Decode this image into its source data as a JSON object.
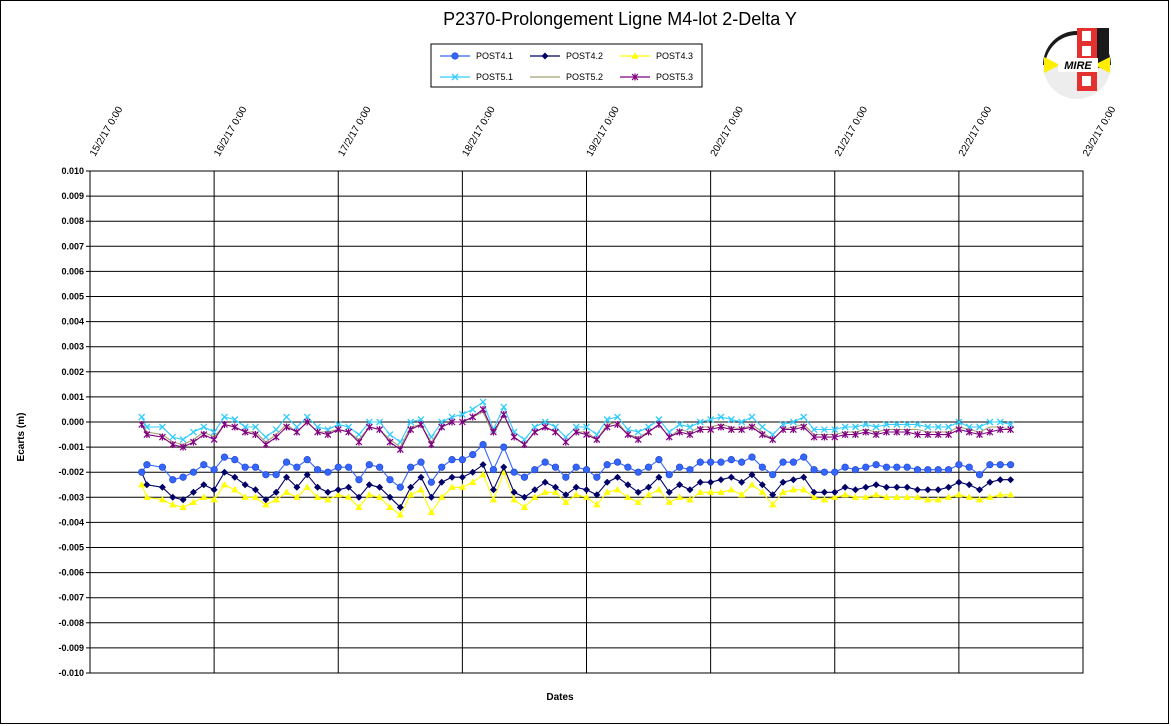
{
  "chart_data": {
    "type": "line",
    "title": "P2370-Prolongement  Ligne  M4-lot 2-Delta  Y",
    "xlabel": "Dates",
    "ylabel": "Ecarts (m)",
    "x_tick_labels": [
      "15/2/17 0:00",
      "16/2/17 0:00",
      "17/2/17 0:00",
      "18/2/17 0:00",
      "19/2/17 0:00",
      "20/2/17 0:00",
      "21/2/17 0:00",
      "22/2/17 0:00",
      "23/2/17 0:00"
    ],
    "xlim": [
      "15/2/17 0:00",
      "23/2/17 0:00"
    ],
    "ylim": [
      -0.01,
      0.01
    ],
    "y_ticks": [
      "0.010",
      "0.009",
      "0.008",
      "0.007",
      "0.006",
      "0.005",
      "0.004",
      "0.003",
      "0.002",
      "0.001",
      "0.000",
      "-0.001",
      "-0.002",
      "-0.003",
      "-0.004",
      "-0.005",
      "-0.006",
      "-0.007",
      "-0.008",
      "-0.009",
      "-0.010"
    ],
    "grid": true,
    "legend_position": "top-center",
    "x": [
      "15/2/17 10:00",
      "15/2/17 11:00",
      "15/2/17 14:00",
      "15/2/17 16:00",
      "15/2/17 18:00",
      "15/2/17 20:00",
      "15/2/17 22:00",
      "16/2/17 0:00",
      "16/2/17 2:00",
      "16/2/17 4:00",
      "16/2/17 6:00",
      "16/2/17 8:00",
      "16/2/17 10:00",
      "16/2/17 12:00",
      "16/2/17 14:00",
      "16/2/17 16:00",
      "16/2/17 18:00",
      "16/2/17 20:00",
      "16/2/17 22:00",
      "17/2/17 0:00",
      "17/2/17 2:00",
      "17/2/17 4:00",
      "17/2/17 6:00",
      "17/2/17 8:00",
      "17/2/17 10:00",
      "17/2/17 12:00",
      "17/2/17 14:00",
      "17/2/17 16:00",
      "17/2/17 18:00",
      "17/2/17 20:00",
      "17/2/17 22:00",
      "18/2/17 0:00",
      "18/2/17 2:00",
      "18/2/17 4:00",
      "18/2/17 6:00",
      "18/2/17 8:00",
      "18/2/17 10:00",
      "18/2/17 12:00",
      "18/2/17 14:00",
      "18/2/17 16:00",
      "18/2/17 18:00",
      "18/2/17 20:00",
      "18/2/17 22:00",
      "19/2/17 0:00",
      "19/2/17 2:00",
      "19/2/17 4:00",
      "19/2/17 6:00",
      "19/2/17 8:00",
      "19/2/17 10:00",
      "19/2/17 12:00",
      "19/2/17 14:00",
      "19/2/17 16:00",
      "19/2/17 18:00",
      "19/2/17 20:00",
      "19/2/17 22:00",
      "20/2/17 0:00",
      "20/2/17 2:00",
      "20/2/17 4:00",
      "20/2/17 6:00",
      "20/2/17 8:00",
      "20/2/17 10:00",
      "20/2/17 12:00",
      "20/2/17 14:00",
      "20/2/17 16:00",
      "20/2/17 18:00",
      "20/2/17 20:00",
      "20/2/17 22:00",
      "21/2/17 0:00",
      "21/2/17 2:00",
      "21/2/17 4:00",
      "21/2/17 6:00",
      "21/2/17 8:00",
      "21/2/17 10:00",
      "21/2/17 12:00",
      "21/2/17 14:00",
      "21/2/17 16:00",
      "21/2/17 18:00",
      "21/2/17 20:00",
      "21/2/17 22:00",
      "22/2/17 0:00",
      "22/2/17 2:00",
      "22/2/17 4:00",
      "22/2/17 6:00",
      "22/2/17 8:00",
      "22/2/17 10:00"
    ],
    "series": [
      {
        "name": "POST4.1",
        "color": "#3366FF",
        "marker": "circle",
        "values": [
          -0.002,
          -0.0017,
          -0.0018,
          -0.0023,
          -0.0022,
          -0.002,
          -0.0017,
          -0.0019,
          -0.0014,
          -0.0015,
          -0.0018,
          -0.0018,
          -0.0021,
          -0.0021,
          -0.0016,
          -0.0018,
          -0.0015,
          -0.0019,
          -0.002,
          -0.0018,
          -0.0018,
          -0.0023,
          -0.0017,
          -0.0018,
          -0.0023,
          -0.0026,
          -0.0018,
          -0.0016,
          -0.0024,
          -0.0018,
          -0.0015,
          -0.0015,
          -0.0013,
          -0.0009,
          -0.0019,
          -0.001,
          -0.002,
          -0.0022,
          -0.0019,
          -0.0016,
          -0.0018,
          -0.0022,
          -0.0018,
          -0.0019,
          -0.0022,
          -0.0017,
          -0.0016,
          -0.0018,
          -0.002,
          -0.0018,
          -0.0015,
          -0.0021,
          -0.0018,
          -0.0019,
          -0.0016,
          -0.0016,
          -0.0016,
          -0.0015,
          -0.0016,
          -0.0014,
          -0.0018,
          -0.0021,
          -0.0016,
          -0.0016,
          -0.0014,
          -0.0019,
          -0.002,
          -0.002,
          -0.0018,
          -0.0019,
          -0.0018,
          -0.0017,
          -0.0018,
          -0.0018,
          -0.0018,
          -0.0019,
          -0.0019,
          -0.0019,
          -0.0019,
          -0.0017,
          -0.0018,
          -0.0021,
          -0.0017,
          -0.0017,
          -0.0017
        ]
      },
      {
        "name": "POST4.2",
        "color": "#000066",
        "marker": "diamond",
        "values": [
          -0.002,
          -0.0025,
          -0.0026,
          -0.003,
          -0.0031,
          -0.0028,
          -0.0025,
          -0.0027,
          -0.002,
          -0.0022,
          -0.0025,
          -0.0027,
          -0.0031,
          -0.0028,
          -0.0022,
          -0.0026,
          -0.0021,
          -0.0026,
          -0.0028,
          -0.0027,
          -0.0026,
          -0.003,
          -0.0025,
          -0.0026,
          -0.003,
          -0.0034,
          -0.0026,
          -0.0022,
          -0.003,
          -0.0024,
          -0.0022,
          -0.0022,
          -0.002,
          -0.0017,
          -0.0027,
          -0.0018,
          -0.0028,
          -0.003,
          -0.0027,
          -0.0024,
          -0.0026,
          -0.0029,
          -0.0026,
          -0.0027,
          -0.0029,
          -0.0024,
          -0.0022,
          -0.0025,
          -0.0028,
          -0.0026,
          -0.0022,
          -0.0028,
          -0.0025,
          -0.0027,
          -0.0024,
          -0.0024,
          -0.0023,
          -0.0022,
          -0.0024,
          -0.0021,
          -0.0025,
          -0.0029,
          -0.0024,
          -0.0023,
          -0.0022,
          -0.0028,
          -0.0028,
          -0.0028,
          -0.0026,
          -0.0027,
          -0.0026,
          -0.0025,
          -0.0026,
          -0.0026,
          -0.0026,
          -0.0027,
          -0.0027,
          -0.0027,
          -0.0026,
          -0.0024,
          -0.0025,
          -0.0027,
          -0.0024,
          -0.0023,
          -0.0023
        ]
      },
      {
        "name": "POST4.3",
        "color": "#FFFF00",
        "marker": "triangle",
        "values": [
          -0.0025,
          -0.003,
          -0.0031,
          -0.0033,
          -0.0034,
          -0.0032,
          -0.003,
          -0.0031,
          -0.0025,
          -0.0027,
          -0.003,
          -0.003,
          -0.0033,
          -0.0031,
          -0.0028,
          -0.003,
          -0.0026,
          -0.003,
          -0.0031,
          -0.0029,
          -0.003,
          -0.0034,
          -0.0029,
          -0.003,
          -0.0034,
          -0.0037,
          -0.0029,
          -0.0027,
          -0.0036,
          -0.003,
          -0.0026,
          -0.0026,
          -0.0024,
          -0.0021,
          -0.0031,
          -0.002,
          -0.0031,
          -0.0034,
          -0.003,
          -0.0028,
          -0.0028,
          -0.0032,
          -0.0029,
          -0.003,
          -0.0033,
          -0.0028,
          -0.0027,
          -0.003,
          -0.0032,
          -0.0029,
          -0.0027,
          -0.0032,
          -0.003,
          -0.0031,
          -0.0028,
          -0.0028,
          -0.0028,
          -0.0027,
          -0.0029,
          -0.0025,
          -0.0028,
          -0.0033,
          -0.0028,
          -0.0027,
          -0.0027,
          -0.003,
          -0.0031,
          -0.003,
          -0.0029,
          -0.003,
          -0.003,
          -0.0029,
          -0.003,
          -0.003,
          -0.003,
          -0.003,
          -0.0031,
          -0.0031,
          -0.003,
          -0.0029,
          -0.003,
          -0.0031,
          -0.003,
          -0.0029,
          -0.0029
        ]
      },
      {
        "name": "POST5.1",
        "color": "#33CCFF",
        "marker": "x",
        "values": [
          0.0002,
          -0.0002,
          -0.0002,
          -0.0006,
          -0.0007,
          -0.0004,
          -0.0002,
          -0.0004,
          0.0002,
          0.0001,
          -0.0002,
          -0.0002,
          -0.0006,
          -0.0003,
          0.0002,
          -0.0002,
          0.0002,
          -0.0002,
          -0.0003,
          -0.0001,
          -0.0002,
          -0.0005,
          0.0,
          0.0,
          -0.0005,
          -0.0008,
          0.0,
          0.0001,
          -0.0006,
          0.0,
          0.0002,
          0.0003,
          0.0005,
          0.0008,
          -0.0003,
          0.0006,
          -0.0004,
          -0.0007,
          -0.0002,
          0.0,
          -0.0002,
          -0.0006,
          -0.0002,
          -0.0002,
          -0.0005,
          0.0001,
          0.0002,
          -0.0003,
          -0.0004,
          -0.0002,
          0.0001,
          -0.0004,
          -0.0001,
          -0.0002,
          0.0,
          0.0001,
          0.0002,
          0.0001,
          0.0,
          0.0002,
          -0.0002,
          -0.0005,
          -0.0001,
          0.0,
          0.0002,
          -0.0003,
          -0.0003,
          -0.0003,
          -0.0002,
          -0.0002,
          -0.0001,
          -0.0002,
          -0.0001,
          -0.0001,
          -0.0001,
          -0.0001,
          -0.0002,
          -0.0002,
          -0.0002,
          0.0,
          -0.0002,
          -0.0002,
          0.0,
          0.0,
          -0.0001
        ]
      },
      {
        "name": "POST5.2",
        "color": "#A0A070",
        "marker": "none",
        "values": [
          -0.0001,
          -0.0004,
          -0.0005,
          -0.0008,
          -0.0009,
          -0.0007,
          -0.0004,
          -0.0006,
          -0.0001,
          -0.0002,
          -0.0004,
          -0.0004,
          -0.0008,
          -0.0005,
          -0.0001,
          -0.0004,
          0.0,
          -0.0004,
          -0.0004,
          -0.0003,
          -0.0004,
          -0.0007,
          -0.0002,
          -0.0003,
          -0.0007,
          -0.001,
          -0.0002,
          -0.0001,
          -0.0008,
          -0.0002,
          0.0,
          0.0,
          0.0002,
          0.0004,
          -0.0005,
          0.0003,
          -0.0006,
          -0.0009,
          -0.0004,
          -0.0002,
          -0.0004,
          -0.0008,
          -0.0004,
          -0.0004,
          -0.0007,
          -0.0001,
          0.0,
          -0.0005,
          -0.0006,
          -0.0004,
          -0.0001,
          -0.0006,
          -0.0003,
          -0.0004,
          -0.0002,
          -0.0002,
          -0.0001,
          -0.0002,
          -0.0003,
          -0.0001,
          -0.0004,
          -0.0007,
          -0.0003,
          -0.0002,
          -0.0001,
          -0.0005,
          -0.0005,
          -0.0005,
          -0.0004,
          -0.0004,
          -0.0003,
          -0.0004,
          -0.0003,
          -0.0003,
          -0.0003,
          -0.0003,
          -0.0004,
          -0.0004,
          -0.0004,
          -0.0002,
          -0.0003,
          -0.0004,
          -0.0002,
          -0.0002,
          -0.0003
        ]
      },
      {
        "name": "POST5.3",
        "color": "#800080",
        "marker": "star",
        "values": [
          -0.0001,
          -0.0005,
          -0.0006,
          -0.0009,
          -0.001,
          -0.0008,
          -0.0005,
          -0.0007,
          -0.0001,
          -0.0002,
          -0.0004,
          -0.0005,
          -0.0009,
          -0.0006,
          -0.0002,
          -0.0004,
          0.0,
          -0.0004,
          -0.0005,
          -0.0003,
          -0.0004,
          -0.0008,
          -0.0002,
          -0.0003,
          -0.0008,
          -0.0011,
          -0.0003,
          -0.0001,
          -0.0009,
          -0.0002,
          0.0,
          0.0,
          0.0002,
          0.0005,
          -0.0004,
          0.0003,
          -0.0006,
          -0.0009,
          -0.0004,
          -0.0002,
          -0.0004,
          -0.0008,
          -0.0004,
          -0.0005,
          -0.0007,
          -0.0002,
          -0.0001,
          -0.0005,
          -0.0007,
          -0.0004,
          -0.0001,
          -0.0006,
          -0.0004,
          -0.0005,
          -0.0003,
          -0.0003,
          -0.0002,
          -0.0003,
          -0.0003,
          -0.0002,
          -0.0005,
          -0.0007,
          -0.0003,
          -0.0003,
          -0.0002,
          -0.0006,
          -0.0006,
          -0.0006,
          -0.0005,
          -0.0005,
          -0.0004,
          -0.0005,
          -0.0004,
          -0.0004,
          -0.0004,
          -0.0005,
          -0.0005,
          -0.0005,
          -0.0005,
          -0.0003,
          -0.0004,
          -0.0005,
          -0.0004,
          -0.0003,
          -0.0003
        ]
      }
    ]
  },
  "logo": {
    "text": "MIRE",
    "colors": {
      "dark": "#1a1a1a",
      "red": "#e53030",
      "yellow": "#ffee00",
      "white": "#ffffff"
    }
  }
}
